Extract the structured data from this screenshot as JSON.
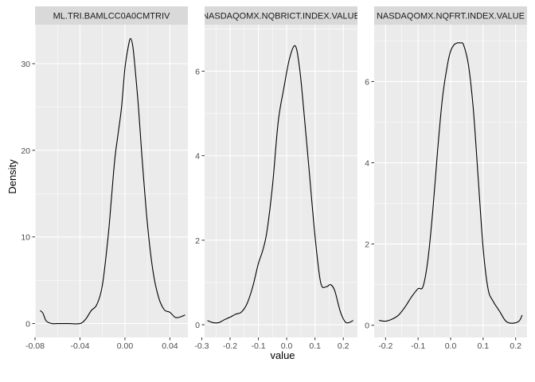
{
  "chart_data": {
    "type": "line",
    "subtype": "density",
    "xlabel": "value",
    "ylabel": "Density",
    "panels": [
      {
        "title": "ML.TRI.BAMLCC0A0CMTRIV",
        "xlim": [
          -0.08,
          0.056
        ],
        "ylim": [
          -1.6,
          34.5
        ],
        "xticks": [
          -0.08,
          -0.04,
          0.0,
          0.04
        ],
        "xtick_labels": [
          "-0.08",
          "-0.04",
          "0.00",
          "0.04"
        ],
        "yticks": [
          0,
          10,
          20,
          30
        ],
        "ytick_labels": [
          "0",
          "10",
          "20",
          "30"
        ],
        "x": [
          -0.0755,
          -0.073,
          -0.07,
          -0.065,
          -0.06,
          -0.05,
          -0.04,
          -0.035,
          -0.03,
          -0.025,
          -0.02,
          -0.015,
          -0.012,
          -0.009,
          -0.006,
          -0.003,
          0.0,
          0.003,
          0.005,
          0.007,
          0.009,
          0.012,
          0.015,
          0.02,
          0.025,
          0.03,
          0.035,
          0.04,
          0.045,
          0.05,
          0.0535
        ],
        "y": [
          1.5,
          1.2,
          0.3,
          0.0,
          0.0,
          0.0,
          0.0,
          0.5,
          1.5,
          2.2,
          4.5,
          10.0,
          14.5,
          19.0,
          22.0,
          25.0,
          29.5,
          32.0,
          32.9,
          32.0,
          29.5,
          25.0,
          19.5,
          11.5,
          6.0,
          3.0,
          1.6,
          1.3,
          0.7,
          0.8,
          1.0
        ]
      },
      {
        "title": "NASDAQOMX.NQBRICT.INDEX.VALUE",
        "xlim": [
          -0.29,
          0.25
        ],
        "ylim": [
          -0.3,
          7.1
        ],
        "xticks": [
          -0.3,
          -0.2,
          -0.1,
          0.0,
          0.1,
          0.2
        ],
        "xtick_labels": [
          "-0.3",
          "-0.2",
          "-0.1",
          "0.0",
          "0.1",
          "0.2"
        ],
        "yticks": [
          0,
          2,
          4,
          6
        ],
        "ytick_labels": [
          "0",
          "2",
          "4",
          "6"
        ],
        "x": [
          -0.28,
          -0.26,
          -0.24,
          -0.22,
          -0.2,
          -0.18,
          -0.16,
          -0.14,
          -0.12,
          -0.1,
          -0.085,
          -0.07,
          -0.05,
          -0.03,
          -0.01,
          0.01,
          0.03,
          0.045,
          0.06,
          0.08,
          0.1,
          0.12,
          0.14,
          0.155,
          0.17,
          0.19,
          0.21,
          0.235
        ],
        "y": [
          0.1,
          0.05,
          0.05,
          0.12,
          0.18,
          0.25,
          0.3,
          0.5,
          0.9,
          1.45,
          1.75,
          2.2,
          3.3,
          4.8,
          5.6,
          6.3,
          6.6,
          6.1,
          5.1,
          3.6,
          2.1,
          1.0,
          0.9,
          0.95,
          0.8,
          0.3,
          0.05,
          0.1
        ]
      },
      {
        "title": "NASDAQOMX.NQFRT.INDEX.VALUE",
        "xlim": [
          -0.235,
          0.235
        ],
        "ylim": [
          -0.3,
          7.4
        ],
        "xticks": [
          -0.2,
          -0.1,
          0.0,
          0.1,
          0.2
        ],
        "xtick_labels": [
          "-0.2",
          "-0.1",
          "0.0",
          "0.1",
          "0.2"
        ],
        "yticks": [
          0,
          2,
          4,
          6
        ],
        "ytick_labels": [
          "0",
          "2",
          "4",
          "6"
        ],
        "x": [
          -0.22,
          -0.2,
          -0.18,
          -0.16,
          -0.14,
          -0.12,
          -0.1,
          -0.085,
          -0.07,
          -0.055,
          -0.04,
          -0.025,
          -0.01,
          0.0,
          0.01,
          0.02,
          0.03,
          0.04,
          0.055,
          0.07,
          0.085,
          0.1,
          0.115,
          0.13,
          0.15,
          0.17,
          0.19,
          0.21,
          0.22
        ],
        "y": [
          0.12,
          0.1,
          0.15,
          0.25,
          0.45,
          0.7,
          0.9,
          0.95,
          1.6,
          2.8,
          4.3,
          5.6,
          6.4,
          6.75,
          6.9,
          6.95,
          6.95,
          6.9,
          6.4,
          5.3,
          3.6,
          1.9,
          0.9,
          0.6,
          0.35,
          0.1,
          0.05,
          0.1,
          0.25
        ]
      }
    ],
    "grid": true,
    "legend": "none",
    "colors": {
      "panel_background": "#ebebeb",
      "grid_major": "#ffffff",
      "strip_background": "#d9d9d9",
      "line": "#000000"
    }
  }
}
